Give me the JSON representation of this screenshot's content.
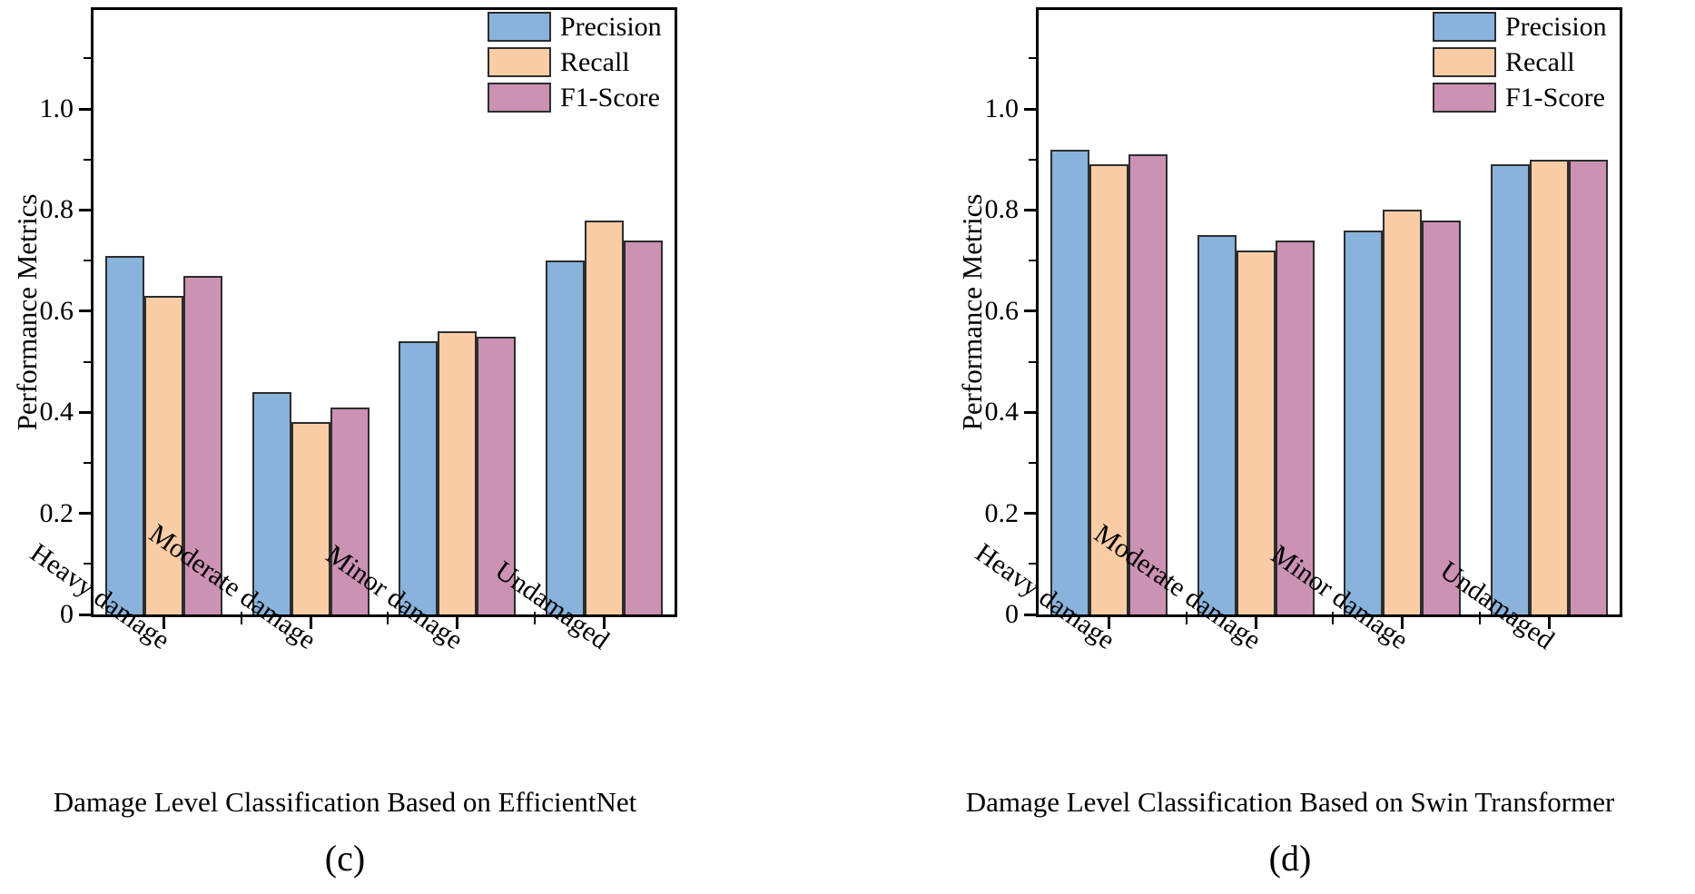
{
  "page": {
    "background": "#ffffff",
    "axis_color": "#000000",
    "bar_edge_color": "#2d2d2d"
  },
  "chart_data": [
    {
      "type": "bar",
      "panel_label": "(c)",
      "title": "Damage Level Classification Based on EfficientNet",
      "ylabel": "Performance Metrics",
      "xlabel": "",
      "categories": [
        "Heavy damage",
        "Moderate damage",
        "Minor damage",
        "Undamaged"
      ],
      "series": [
        {
          "name": "Precision",
          "color": "#8AB3DC",
          "values": [
            0.71,
            0.44,
            0.54,
            0.7
          ]
        },
        {
          "name": "Recall",
          "color": "#FACDA7",
          "values": [
            0.63,
            0.38,
            0.56,
            0.78
          ]
        },
        {
          "name": "F1-Score",
          "color": "#CB92B4",
          "values": [
            0.67,
            0.41,
            0.55,
            0.74
          ]
        }
      ],
      "ylim": [
        0,
        1.2
      ],
      "yticks": [
        0,
        0.2,
        0.4,
        0.6,
        0.8,
        1.0
      ],
      "yticks_minor": [
        0.1,
        0.3,
        0.5,
        0.7,
        0.9,
        1.1
      ],
      "legend_position": "upper right",
      "grid": false
    },
    {
      "type": "bar",
      "panel_label": "(d)",
      "title": "Damage Level Classification Based on Swin Transformer",
      "ylabel": "Performance Metrics",
      "xlabel": "",
      "categories": [
        "Heavy damage",
        "Moderate damage",
        "Minor damage",
        "Undamaged"
      ],
      "series": [
        {
          "name": "Precision",
          "color": "#8AB3DC",
          "values": [
            0.92,
            0.75,
            0.76,
            0.89
          ]
        },
        {
          "name": "Recall",
          "color": "#FACDA7",
          "values": [
            0.89,
            0.72,
            0.8,
            0.9
          ]
        },
        {
          "name": "F1-Score",
          "color": "#CB92B4",
          "values": [
            0.91,
            0.74,
            0.78,
            0.9
          ]
        }
      ],
      "ylim": [
        0,
        1.2
      ],
      "yticks": [
        0,
        0.2,
        0.4,
        0.6,
        0.8,
        1.0
      ],
      "yticks_minor": [
        0.1,
        0.3,
        0.5,
        0.7,
        0.9,
        1.1
      ],
      "legend_position": "upper right",
      "grid": false
    }
  ]
}
